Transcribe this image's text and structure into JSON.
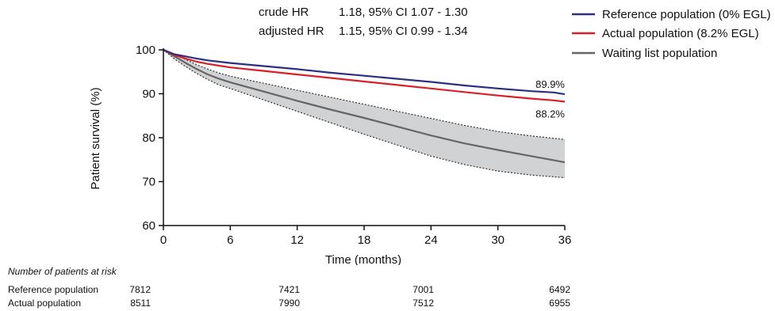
{
  "hr_table": [
    {
      "label": "crude HR",
      "value": "1.18, 95% CI 1.07 - 1.30"
    },
    {
      "label": "adjusted HR",
      "value": "1.15, 95% CI 0.99 - 1.34"
    }
  ],
  "chart_data": {
    "type": "line",
    "title": "",
    "xlabel": "Time (months)",
    "ylabel": "Patient survival (%)",
    "xlim": [
      0,
      36
    ],
    "ylim": [
      60,
      100
    ],
    "xticks": [
      "0",
      "6",
      "12",
      "18",
      "24",
      "30",
      "36"
    ],
    "yticks": [
      "60",
      "70",
      "80",
      "90",
      "100"
    ],
    "grid": false,
    "legend_position": "top-right",
    "series": [
      {
        "name": "Reference population (0% EGL)",
        "color": "#2b2e83",
        "x": [
          0,
          1,
          2,
          3,
          4,
          5,
          6,
          9,
          12,
          15,
          18,
          21,
          24,
          27,
          30,
          33,
          35,
          36
        ],
        "values": [
          100,
          99,
          98.5,
          98,
          97.6,
          97.3,
          97.0,
          96.3,
          95.6,
          94.8,
          94.1,
          93.4,
          92.7,
          91.9,
          91.2,
          90.6,
          90.3,
          89.9
        ],
        "end_label": "89.9%"
      },
      {
        "name": "Actual population (8.2% EGL)",
        "color": "#d7202a",
        "x": [
          0,
          1,
          2,
          3,
          4,
          5,
          6,
          9,
          12,
          15,
          18,
          21,
          24,
          27,
          30,
          33,
          35,
          36
        ],
        "values": [
          100,
          98.8,
          98.0,
          97.3,
          96.8,
          96.4,
          96.0,
          95.2,
          94.4,
          93.6,
          92.8,
          92.0,
          91.2,
          90.4,
          89.6,
          88.9,
          88.5,
          88.2
        ],
        "end_label": "88.2%"
      },
      {
        "name": "Waiting list population",
        "color": "#666666",
        "x": [
          0,
          1,
          2,
          3,
          4,
          5,
          6,
          9,
          12,
          15,
          18,
          21,
          24,
          27,
          30,
          33,
          36
        ],
        "values": [
          100,
          98.5,
          97.0,
          95.6,
          94.4,
          93.4,
          92.6,
          90.5,
          88.4,
          86.4,
          84.5,
          82.5,
          80.5,
          78.7,
          77.2,
          75.8,
          74.4
        ],
        "ci_lower": [
          100,
          97.9,
          96.2,
          94.6,
          93.2,
          92.0,
          91.2,
          88.6,
          86.0,
          83.4,
          80.8,
          78.3,
          75.8,
          73.9,
          72.4,
          71.5,
          70.9
        ],
        "ci_upper": [
          100,
          99.0,
          97.8,
          96.6,
          95.6,
          94.7,
          94.0,
          92.4,
          90.8,
          89.2,
          87.6,
          86.0,
          84.4,
          82.8,
          81.4,
          80.4,
          79.6
        ]
      }
    ]
  },
  "risk_table": {
    "title": "Number of patients at risk",
    "rows": [
      {
        "name": "Reference population",
        "values": [
          "7812",
          "7421",
          "7001",
          "6492"
        ]
      },
      {
        "name": "Actual population",
        "values": [
          "8511",
          "7990",
          "7512",
          "6955"
        ]
      }
    ]
  }
}
